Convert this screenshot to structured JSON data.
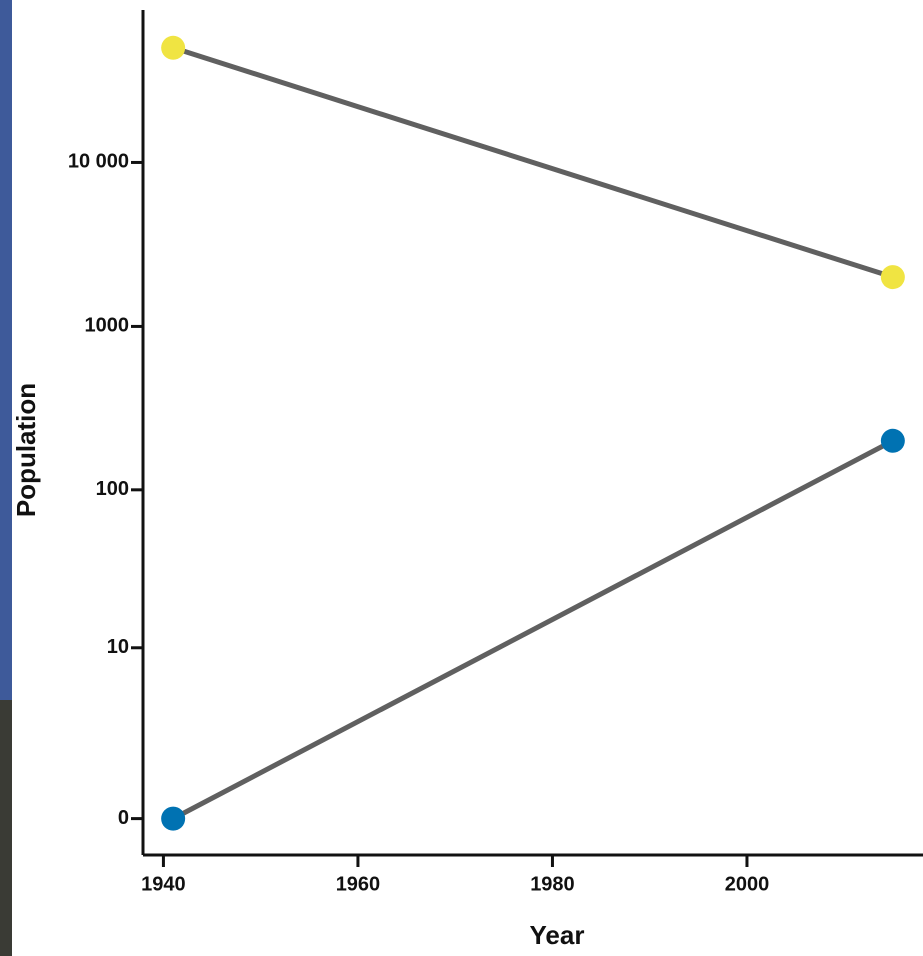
{
  "chart_data": {
    "type": "line",
    "x_label": "Year",
    "y_label": "Population",
    "x": [
      1941,
      2015
    ],
    "series": [
      {
        "color": "#f0e442",
        "values": [
          50000,
          2000
        ]
      },
      {
        "color": "#0072b2",
        "values": [
          0,
          200
        ]
      }
    ],
    "line_color": "#606060",
    "y_scale": "log1p",
    "xlim": [
      1937.9,
      2018.1
    ],
    "xticks": [
      1940,
      1960,
      1980,
      2000
    ],
    "ylim": [
      -0.4,
      85000
    ],
    "yticks": [
      0,
      10,
      100,
      1000,
      {
        "value": 10000,
        "label": "10 000"
      }
    ],
    "grid": false
  }
}
